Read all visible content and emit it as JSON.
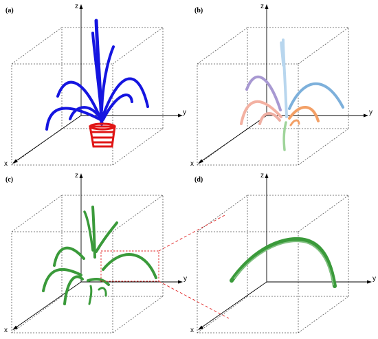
{
  "panels": {
    "a": {
      "label": "(a)"
    },
    "b": {
      "label": "(b)"
    },
    "c": {
      "label": "(c)"
    },
    "d": {
      "label": "(d)"
    }
  },
  "axes": {
    "x": "x",
    "y": "y",
    "z": "z"
  },
  "colors": {
    "a_leaves": "#1515e0",
    "a_pot": "#e01515",
    "b_leaf1": "#b8d6ee",
    "b_leaf2": "#a899d2",
    "b_leaf3": "#7db0db",
    "b_leaf4": "#f3b1a2",
    "b_leaf5": "#f3a066",
    "b_leaf6": "#efb0a4",
    "b_leaf7": "#9fd49a",
    "c_leaves": "#3a9a3a",
    "d_leaf": "#3a9a3a",
    "zoom": "#e02020"
  }
}
